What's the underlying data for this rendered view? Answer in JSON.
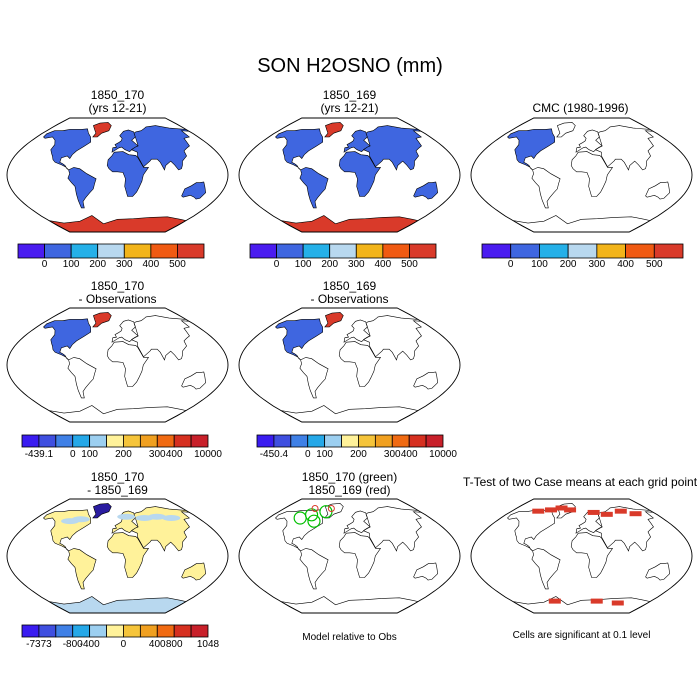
{
  "main_title": "SON H2OSNO (mm)",
  "panels": [
    {
      "id": "p1",
      "title1": "1850_170",
      "title2": "(yrs 12-21)",
      "fill": "blue_with_red_poles"
    },
    {
      "id": "p2",
      "title1": "1850_169",
      "title2": "(yrs 12-21)",
      "fill": "blue_with_red_poles"
    },
    {
      "id": "p3",
      "title1": "CMC (1980-1996)",
      "title2": "",
      "fill": "north_america_blue"
    },
    {
      "id": "p4",
      "title1": "1850_170",
      "title2": "- Observations",
      "fill": "diff_north"
    },
    {
      "id": "p5",
      "title1": "1850_169",
      "title2": "- Observations",
      "fill": "diff_north"
    },
    {
      "id": "p7",
      "title1": "1850_170",
      "title2": "- 1850_169",
      "fill": "yellow_diff"
    },
    {
      "id": "p8",
      "title1": "1850_170 (green)",
      "title2": "1850_169 (red)",
      "fill": "green_red_contours"
    },
    {
      "id": "p9",
      "title1": "T-Test of two Case means at each grid point",
      "title2": "",
      "fill": "red_significance"
    }
  ],
  "colorbars": {
    "top": {
      "colors": [
        "#4a1cf0",
        "#3f66e0",
        "#25b0e8",
        "#b8d8ef",
        "#f2b41a",
        "#f05a12",
        "#d93a2a"
      ],
      "labels": [
        "0",
        "100",
        "200",
        "300",
        "400",
        "500"
      ]
    },
    "p4": {
      "colors": [
        "#3a1cf0",
        "#3f4fe0",
        "#3f80e6",
        "#25a8e8",
        "#9ccff0",
        "#fff29a",
        "#f5c43a",
        "#f0a020",
        "#f06a12",
        "#d63020",
        "#c8202a"
      ],
      "labels": [
        "-439.1",
        "0",
        "100",
        "200",
        "300",
        "400",
        "10000"
      ]
    },
    "p5": {
      "colors": [
        "#3a1cf0",
        "#3f4fe0",
        "#3f80e6",
        "#25a8e8",
        "#9ccff0",
        "#fff29a",
        "#f5c43a",
        "#f0a020",
        "#f06a12",
        "#d63020",
        "#c8202a"
      ],
      "labels": [
        "-450.4",
        "0",
        "100",
        "200",
        "300",
        "400",
        "10000"
      ]
    },
    "p7": {
      "colors": [
        "#3a1cf0",
        "#3f4fe0",
        "#3f80e6",
        "#25a8e8",
        "#9ccff0",
        "#fff29a",
        "#f5c43a",
        "#f0a020",
        "#f06a12",
        "#d63020",
        "#c8202a"
      ],
      "labels": [
        "-7373",
        "-800",
        "-400",
        "0",
        "400",
        "800",
        "1048"
      ]
    }
  },
  "notes": {
    "model_relative": "Model relative to Obs",
    "significance": "Cells are significant at 0.1 level"
  },
  "colors": {
    "blue": "#3f66e0",
    "red": "#d93a2a",
    "yellow": "#fff29a",
    "lightblue": "#b8d8ef",
    "darkblue": "#2a1ca0",
    "green": "#00c000"
  }
}
